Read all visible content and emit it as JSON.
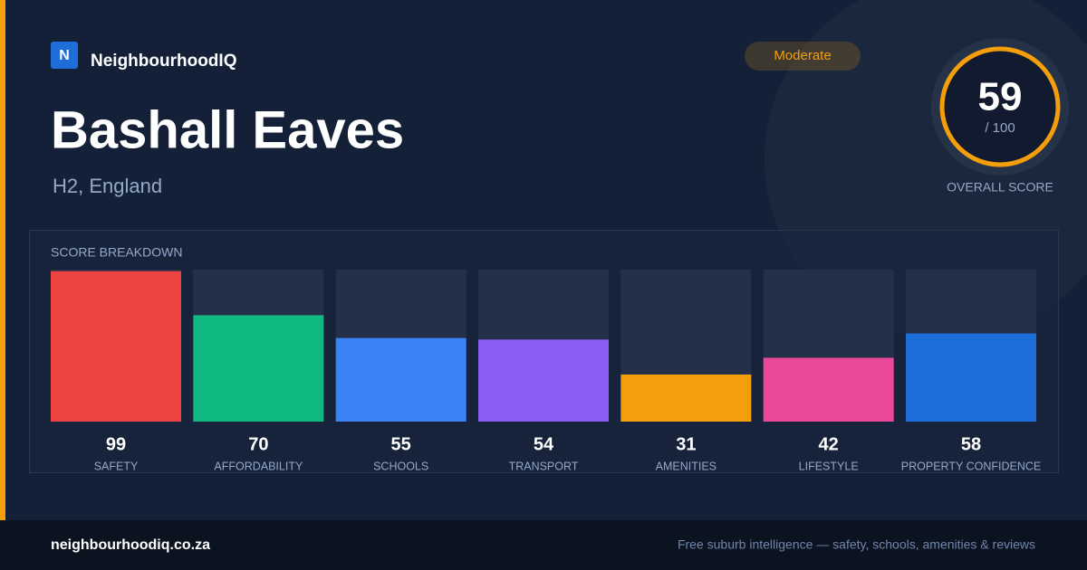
{
  "brand": {
    "logo": "N",
    "name": "NeighbourhoodIQ"
  },
  "badge": "Moderate",
  "title": "Bashall Eaves",
  "subtitle": "H2, England",
  "score": {
    "value": 59,
    "out_of": "/ 100",
    "label": "OVERALL SCORE"
  },
  "chart_data": {
    "type": "bar",
    "title": "SCORE BREAKDOWN",
    "categories": [
      "SAFETY",
      "AFFORDABILITY",
      "SCHOOLS",
      "TRANSPORT",
      "AMENITIES",
      "LIFESTYLE",
      "PROPERTY CONFIDENCE"
    ],
    "values": [
      99,
      70,
      55,
      54,
      31,
      42,
      58
    ],
    "colors": [
      "#ef4444",
      "#10b981",
      "#3b82f6",
      "#8b5cf6",
      "#f59e0b",
      "#ec4899",
      "#1d6ed8"
    ],
    "ylim": [
      0,
      100
    ]
  },
  "footer": {
    "site": "neighbourhoodiq.co.za",
    "tagline": "Free suburb intelligence — safety, schools, amenities & reviews"
  }
}
